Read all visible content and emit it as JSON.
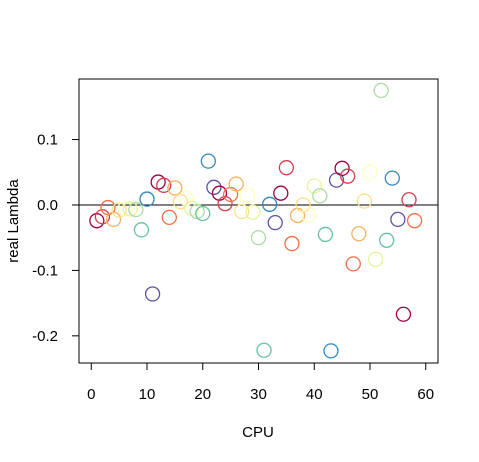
{
  "chart_data": {
    "type": "scatter",
    "xlabel": "CPU",
    "ylabel": "real Lambda",
    "xlim": [
      -2.2,
      62.2
    ],
    "ylim": [
      -0.2415,
      0.1925
    ],
    "xticks": [
      0,
      10,
      20,
      30,
      40,
      50,
      60
    ],
    "yticks": [
      -0.2,
      -0.1,
      0.0,
      0.1
    ],
    "ytick_labels": [
      "-0.2",
      "-0.1",
      "0.0",
      "0.1"
    ],
    "hline": 0.0,
    "grid": false,
    "points": [
      {
        "x": 1,
        "y": -0.024,
        "color": "#9E0142"
      },
      {
        "x": 2,
        "y": -0.018,
        "color": "#D53E4F"
      },
      {
        "x": 3,
        "y": -0.004,
        "color": "#F46D43"
      },
      {
        "x": 4,
        "y": -0.022,
        "color": "#FDAE61"
      },
      {
        "x": 5,
        "y": -0.008,
        "color": "#FEE08B"
      },
      {
        "x": 6,
        "y": -0.006,
        "color": "#FFFFBF"
      },
      {
        "x": 7,
        "y": -0.006,
        "color": "#E6F598"
      },
      {
        "x": 8,
        "y": -0.007,
        "color": "#ABDDA4"
      },
      {
        "x": 9,
        "y": -0.038,
        "color": "#66C2A5"
      },
      {
        "x": 10,
        "y": 0.009,
        "color": "#3288BD"
      },
      {
        "x": 11,
        "y": -0.136,
        "color": "#5E4FA2"
      },
      {
        "x": 12,
        "y": 0.035,
        "color": "#9E0142"
      },
      {
        "x": 13,
        "y": 0.03,
        "color": "#D53E4F"
      },
      {
        "x": 14,
        "y": -0.019,
        "color": "#F46D43"
      },
      {
        "x": 15,
        "y": 0.026,
        "color": "#FDAE61"
      },
      {
        "x": 16,
        "y": 0.005,
        "color": "#FEE08B"
      },
      {
        "x": 17,
        "y": 0.01,
        "color": "#FFFFBF"
      },
      {
        "x": 18,
        "y": -0.005,
        "color": "#E6F598"
      },
      {
        "x": 19,
        "y": -0.01,
        "color": "#ABDDA4"
      },
      {
        "x": 20,
        "y": -0.013,
        "color": "#66C2A5"
      },
      {
        "x": 21,
        "y": 0.067,
        "color": "#3288BD"
      },
      {
        "x": 22,
        "y": 0.027,
        "color": "#5E4FA2"
      },
      {
        "x": 23,
        "y": 0.018,
        "color": "#9E0142"
      },
      {
        "x": 24,
        "y": 0.002,
        "color": "#D53E4F"
      },
      {
        "x": 25,
        "y": 0.016,
        "color": "#F46D43"
      },
      {
        "x": 26,
        "y": 0.032,
        "color": "#FDAE61"
      },
      {
        "x": 27,
        "y": -0.01,
        "color": "#FEE08B"
      },
      {
        "x": 28,
        "y": 0.015,
        "color": "#FFFFBF"
      },
      {
        "x": 29,
        "y": -0.011,
        "color": "#E6F598"
      },
      {
        "x": 30,
        "y": -0.05,
        "color": "#ABDDA4"
      },
      {
        "x": 31,
        "y": -0.222,
        "color": "#66C2A5"
      },
      {
        "x": 32,
        "y": 0.001,
        "color": "#3288BD"
      },
      {
        "x": 33,
        "y": -0.027,
        "color": "#5E4FA2"
      },
      {
        "x": 34,
        "y": 0.018,
        "color": "#9E0142"
      },
      {
        "x": 35,
        "y": 0.057,
        "color": "#D53E4F"
      },
      {
        "x": 36,
        "y": -0.059,
        "color": "#F46D43"
      },
      {
        "x": 37,
        "y": -0.016,
        "color": "#FDAE61"
      },
      {
        "x": 38,
        "y": 0.0,
        "color": "#FEE08B"
      },
      {
        "x": 39,
        "y": -0.015,
        "color": "#FFFFBF"
      },
      {
        "x": 40,
        "y": 0.029,
        "color": "#E6F598"
      },
      {
        "x": 41,
        "y": 0.014,
        "color": "#ABDDA4"
      },
      {
        "x": 42,
        "y": -0.045,
        "color": "#66C2A5"
      },
      {
        "x": 43,
        "y": -0.223,
        "color": "#3288BD"
      },
      {
        "x": 44,
        "y": 0.038,
        "color": "#5E4FA2"
      },
      {
        "x": 45,
        "y": 0.056,
        "color": "#9E0142"
      },
      {
        "x": 46,
        "y": 0.044,
        "color": "#D53E4F"
      },
      {
        "x": 47,
        "y": -0.09,
        "color": "#F46D43"
      },
      {
        "x": 48,
        "y": -0.044,
        "color": "#FDAE61"
      },
      {
        "x": 49,
        "y": 0.006,
        "color": "#FEE08B"
      },
      {
        "x": 50,
        "y": 0.05,
        "color": "#FFFFBF"
      },
      {
        "x": 51,
        "y": -0.083,
        "color": "#E6F598"
      },
      {
        "x": 52,
        "y": 0.175,
        "color": "#ABDDA4"
      },
      {
        "x": 53,
        "y": -0.054,
        "color": "#66C2A5"
      },
      {
        "x": 54,
        "y": 0.041,
        "color": "#3288BD"
      },
      {
        "x": 55,
        "y": -0.022,
        "color": "#5E4FA2"
      },
      {
        "x": 56,
        "y": -0.167,
        "color": "#9E0142"
      },
      {
        "x": 57,
        "y": 0.008,
        "color": "#D53E4F"
      },
      {
        "x": 58,
        "y": -0.024,
        "color": "#F46D43"
      }
    ]
  }
}
